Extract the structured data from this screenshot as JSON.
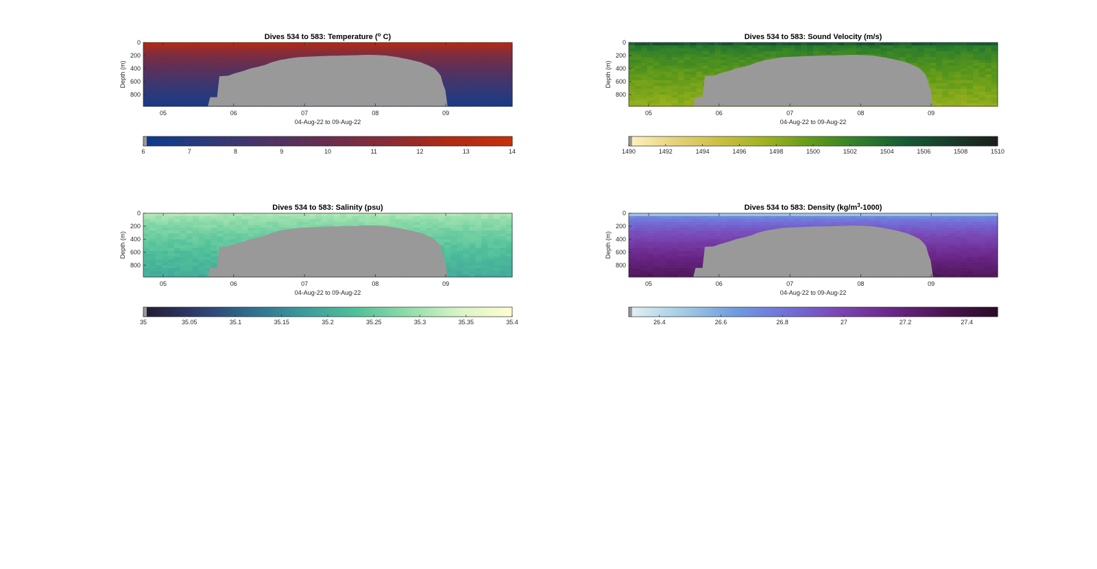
{
  "chart_data": [
    {
      "type": "heatmap",
      "title": "Dives 534 to 583: Temperature (",
      "title_sup": "o",
      "title_end": " C)",
      "ylabel": "Depth (m)",
      "xlabel": "04-Aug-22 to 09-Aug-22",
      "yticks": [
        "0",
        "200",
        "400",
        "600",
        "800"
      ],
      "ylim": [
        0,
        980
      ],
      "y_reversed": true,
      "xticks": [
        "05",
        "06",
        "07",
        "08",
        "09"
      ],
      "colorbar_ticks": [
        "6",
        "7",
        "8",
        "9",
        "10",
        "11",
        "12",
        "13",
        "14"
      ],
      "colorbar_range": [
        6,
        14
      ],
      "colormap": [
        "#0b3a8f",
        "#2c3a7a",
        "#4b3466",
        "#6a2e4f",
        "#8a2c36",
        "#b02a14",
        "#c6300b"
      ],
      "surface_value": 13.5,
      "deep_value": 6.5,
      "noise": 0.02
    },
    {
      "type": "heatmap",
      "title": "Dives 534 to 583: Sound Velocity (m/s)",
      "ylabel": "Depth (m)",
      "xlabel": "04-Aug-22 to 09-Aug-22",
      "yticks": [
        "0",
        "200",
        "400",
        "600",
        "800"
      ],
      "ylim": [
        0,
        980
      ],
      "y_reversed": true,
      "xticks": [
        "05",
        "06",
        "07",
        "08",
        "09"
      ],
      "colorbar_ticks": [
        "1490",
        "1492",
        "1494",
        "1496",
        "1498",
        "1500",
        "1502",
        "1504",
        "1506",
        "1508",
        "1510"
      ],
      "colorbar_range": [
        1490,
        1510
      ],
      "colormap": [
        "#fdf4c0",
        "#e6d27a",
        "#c9bf42",
        "#9cb21d",
        "#5f9a19",
        "#2e7e2b",
        "#155c34",
        "#1a3b2c",
        "#1a1f1a"
      ],
      "surface_value": 1504,
      "deep_value": 1498,
      "noise": 0.06
    },
    {
      "type": "heatmap",
      "title": "Dives 534 to 583: Salinity (psu)",
      "ylabel": "Depth (m)",
      "xlabel": "04-Aug-22 to 09-Aug-22",
      "yticks": [
        "0",
        "200",
        "400",
        "600",
        "800"
      ],
      "ylim": [
        0,
        980
      ],
      "y_reversed": true,
      "xticks": [
        "05",
        "06",
        "07",
        "08",
        "09"
      ],
      "colorbar_ticks": [
        "35",
        "35.05",
        "35.1",
        "35.15",
        "35.2",
        "35.25",
        "35.3",
        "35.35",
        "35.4"
      ],
      "colorbar_range": [
        35,
        35.4
      ],
      "colormap": [
        "#241a33",
        "#2f3b6e",
        "#2f6c8e",
        "#3a9a9a",
        "#4fbf9a",
        "#8fdca9",
        "#d9f4c6",
        "#fffdd0"
      ],
      "surface_value": 35.32,
      "deep_value": 35.2,
      "noise": 0.05
    },
    {
      "type": "heatmap",
      "title": "Dives 534 to 583: Density (kg/m",
      "title_sup": "3",
      "title_end": "-1000)",
      "ylabel": "Depth (m)",
      "xlabel": "04-Aug-22 to 09-Aug-22",
      "yticks": [
        "0",
        "200",
        "400",
        "600",
        "800"
      ],
      "ylim": [
        0,
        980
      ],
      "y_reversed": true,
      "xticks": [
        "05",
        "06",
        "07",
        "08",
        "09"
      ],
      "colorbar_ticks": [
        "26.4",
        "26.6",
        "26.8",
        "27",
        "27.2",
        "27.4"
      ],
      "colorbar_range": [
        26.3,
        27.5
      ],
      "colormap": [
        "#e3f2f4",
        "#a5cde3",
        "#6f9de0",
        "#7270d8",
        "#7a46b4",
        "#6a2688",
        "#4a1552",
        "#2a0a26"
      ],
      "surface_value": 26.6,
      "deep_value": 27.3,
      "noise": 0.03
    }
  ],
  "colors": {
    "bottom_mask": "#999999",
    "axis": "#262626"
  }
}
